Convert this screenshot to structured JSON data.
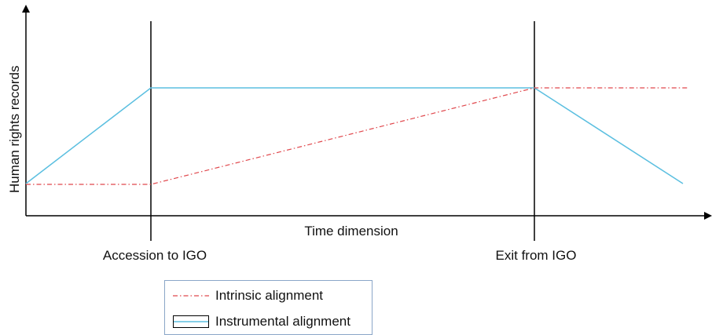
{
  "y_axis_label": "Human rights records",
  "x_axis_label": "Time dimension",
  "event_1_label": "Accession to IGO",
  "event_2_label": "Exit from IGO",
  "legend": {
    "intrinsic": "Intrinsic alignment",
    "instrumental": "Instrumental alignment"
  },
  "colors": {
    "intrinsic": "#e0474c",
    "instrumental": "#5bbfe0",
    "axis": "#000000"
  }
}
